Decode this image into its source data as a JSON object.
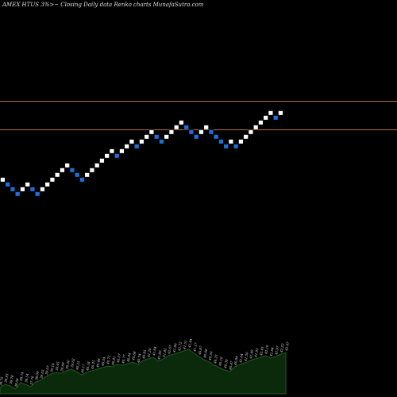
{
  "header": {
    "title": "AMEX  HTUS 3%>~  Closing Daily data  Renko  charts MunafaSutra.com"
  },
  "chart_data": {
    "type": "renko",
    "title": "AMEX  HTUS 3%>~  Closing Daily data  Renko  charts MunafaSutra.com",
    "colors": {
      "background": "#000000",
      "up_brick": "#ffffff",
      "down_brick": "#1e6fd9",
      "reference_line": "#b3713b",
      "volume_area": "#0b2a0b",
      "volume_line": "#1f5a1f",
      "label_text": "#e0e0e0"
    },
    "reference_levels": [
      {
        "name": "upper",
        "value": 1
      },
      {
        "name": "lower",
        "value": -5
      }
    ],
    "bricks": [
      {
        "dir": "up",
        "level": -15
      },
      {
        "dir": "down",
        "level": -16
      },
      {
        "dir": "down",
        "level": -17
      },
      {
        "dir": "down",
        "level": -18
      },
      {
        "dir": "up",
        "level": -17
      },
      {
        "dir": "up",
        "level": -16
      },
      {
        "dir": "down",
        "level": -17
      },
      {
        "dir": "down",
        "level": -18
      },
      {
        "dir": "up",
        "level": -17
      },
      {
        "dir": "up",
        "level": -16
      },
      {
        "dir": "up",
        "level": -15
      },
      {
        "dir": "up",
        "level": -14
      },
      {
        "dir": "up",
        "level": -13
      },
      {
        "dir": "up",
        "level": -12
      },
      {
        "dir": "down",
        "level": -13
      },
      {
        "dir": "down",
        "level": -14
      },
      {
        "dir": "down",
        "level": -15
      },
      {
        "dir": "up",
        "level": -14
      },
      {
        "dir": "up",
        "level": -13
      },
      {
        "dir": "up",
        "level": -12
      },
      {
        "dir": "up",
        "level": -11
      },
      {
        "dir": "up",
        "level": -10
      },
      {
        "dir": "up",
        "level": -9
      },
      {
        "dir": "down",
        "level": -10
      },
      {
        "dir": "up",
        "level": -9
      },
      {
        "dir": "up",
        "level": -8
      },
      {
        "dir": "up",
        "level": -7
      },
      {
        "dir": "down",
        "level": -8
      },
      {
        "dir": "up",
        "level": -7
      },
      {
        "dir": "up",
        "level": -6
      },
      {
        "dir": "up",
        "level": -5
      },
      {
        "dir": "down",
        "level": -6
      },
      {
        "dir": "down",
        "level": -7
      },
      {
        "dir": "up",
        "level": -6
      },
      {
        "dir": "up",
        "level": -5
      },
      {
        "dir": "up",
        "level": -4
      },
      {
        "dir": "up",
        "level": -3
      },
      {
        "dir": "down",
        "level": -4
      },
      {
        "dir": "down",
        "level": -5
      },
      {
        "dir": "down",
        "level": -6
      },
      {
        "dir": "up",
        "level": -5
      },
      {
        "dir": "up",
        "level": -4
      },
      {
        "dir": "down",
        "level": -5
      },
      {
        "dir": "down",
        "level": -6
      },
      {
        "dir": "down",
        "level": -7
      },
      {
        "dir": "down",
        "level": -8
      },
      {
        "dir": "up",
        "level": -7
      },
      {
        "dir": "down",
        "level": -8
      },
      {
        "dir": "up",
        "level": -7
      },
      {
        "dir": "up",
        "level": -6
      },
      {
        "dir": "up",
        "level": -5
      },
      {
        "dir": "up",
        "level": -4
      },
      {
        "dir": "up",
        "level": -3
      },
      {
        "dir": "up",
        "level": -2
      },
      {
        "dir": "up",
        "level": -1
      },
      {
        "dir": "down",
        "level": -2
      },
      {
        "dir": "up",
        "level": -1
      }
    ],
    "volume": [
      8,
      12,
      10,
      6,
      14,
      12,
      9,
      15,
      17,
      22,
      25,
      27,
      26,
      29,
      31,
      28,
      24,
      27,
      29,
      31,
      33,
      35,
      34,
      37,
      36,
      38,
      40,
      37,
      42,
      44,
      46,
      41,
      44,
      48,
      50,
      52,
      54,
      56,
      51,
      47,
      43,
      40,
      36,
      33,
      30,
      28,
      34,
      37,
      39,
      42,
      44,
      46,
      48,
      45,
      47,
      50,
      52
    ],
    "volume_labels": [
      "38.75",
      "38.93",
      "38.78",
      "38.06",
      "38.74",
      "38.54",
      "37.76",
      "38.09",
      "39.02",
      "39.07",
      "39.16",
      "39.45",
      "39.60",
      "39.50",
      "39.62",
      "40.25",
      "40.17",
      "40.18",
      "40.25",
      "40.48",
      "40.54",
      "40.72",
      "40.81",
      "40.37",
      "40.77",
      "40.94",
      "40.68",
      "40.74",
      "40.85",
      "41.20",
      "41.64",
      "41.80",
      "41.82",
      "42.07",
      "41.80",
      "41.72",
      "41.51",
      "41.44",
      "41.17",
      "40.87",
      "40.66",
      "40.50",
      "40.25",
      "40.10",
      "40.30",
      "40.47",
      "40.84",
      "41.04",
      "41.30",
      "41.49",
      "41.93",
      "42.45",
      "42.10",
      "41.84",
      "41.97",
      "42.22",
      "42.47"
    ]
  }
}
